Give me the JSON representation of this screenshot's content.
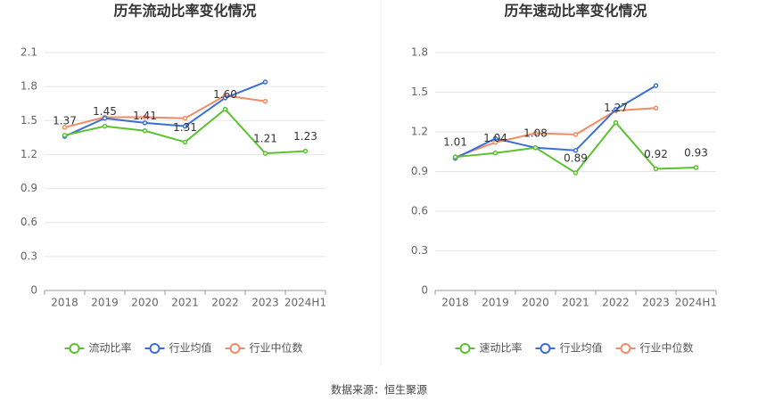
{
  "chart_data": [
    {
      "type": "line",
      "title": "历年流动比率变化情况",
      "categories": [
        "2018",
        "2019",
        "2020",
        "2021",
        "2022",
        "2023",
        "2024H1"
      ],
      "series": [
        {
          "name": "流动比率",
          "color": "#5cc130",
          "values": [
            1.37,
            1.45,
            1.41,
            1.31,
            1.6,
            1.21,
            1.23
          ],
          "value_labels": [
            "1.37",
            "1.45",
            "1.41",
            "1.31",
            "1.60",
            "1.21",
            "1.23"
          ]
        },
        {
          "name": "行业均值",
          "color": "#3b6fd8",
          "values": [
            1.36,
            1.52,
            1.48,
            1.45,
            1.7,
            1.84,
            null
          ]
        },
        {
          "name": "行业中位数",
          "color": "#f08c64",
          "values": [
            1.44,
            1.53,
            1.53,
            1.52,
            1.72,
            1.67,
            null
          ]
        }
      ],
      "ylim": [
        0,
        2.1
      ],
      "yticks": [
        0,
        0.3,
        0.6,
        0.9,
        1.2,
        1.5,
        1.8,
        2.1
      ],
      "grid": true
    },
    {
      "type": "line",
      "title": "历年速动比率变化情况",
      "categories": [
        "2018",
        "2019",
        "2020",
        "2021",
        "2022",
        "2023",
        "2024H1"
      ],
      "series": [
        {
          "name": "速动比率",
          "color": "#5cc130",
          "values": [
            1.01,
            1.04,
            1.08,
            0.89,
            1.27,
            0.92,
            0.93
          ],
          "value_labels": [
            "1.01",
            "1.04",
            "1.08",
            "0.89",
            "1.27",
            "0.92",
            "0.93"
          ]
        },
        {
          "name": "行业均值",
          "color": "#3b6fd8",
          "values": [
            1.0,
            1.15,
            1.08,
            1.06,
            1.37,
            1.55,
            null
          ]
        },
        {
          "name": "行业中位数",
          "color": "#f08c64",
          "values": [
            1.01,
            1.12,
            1.19,
            1.18,
            1.36,
            1.38,
            null
          ]
        }
      ],
      "ylim": [
        0,
        1.8
      ],
      "yticks": [
        0,
        0.3,
        0.6,
        0.9,
        1.2,
        1.5,
        1.8
      ],
      "grid": true
    }
  ],
  "source": "数据来源：恒生聚源"
}
